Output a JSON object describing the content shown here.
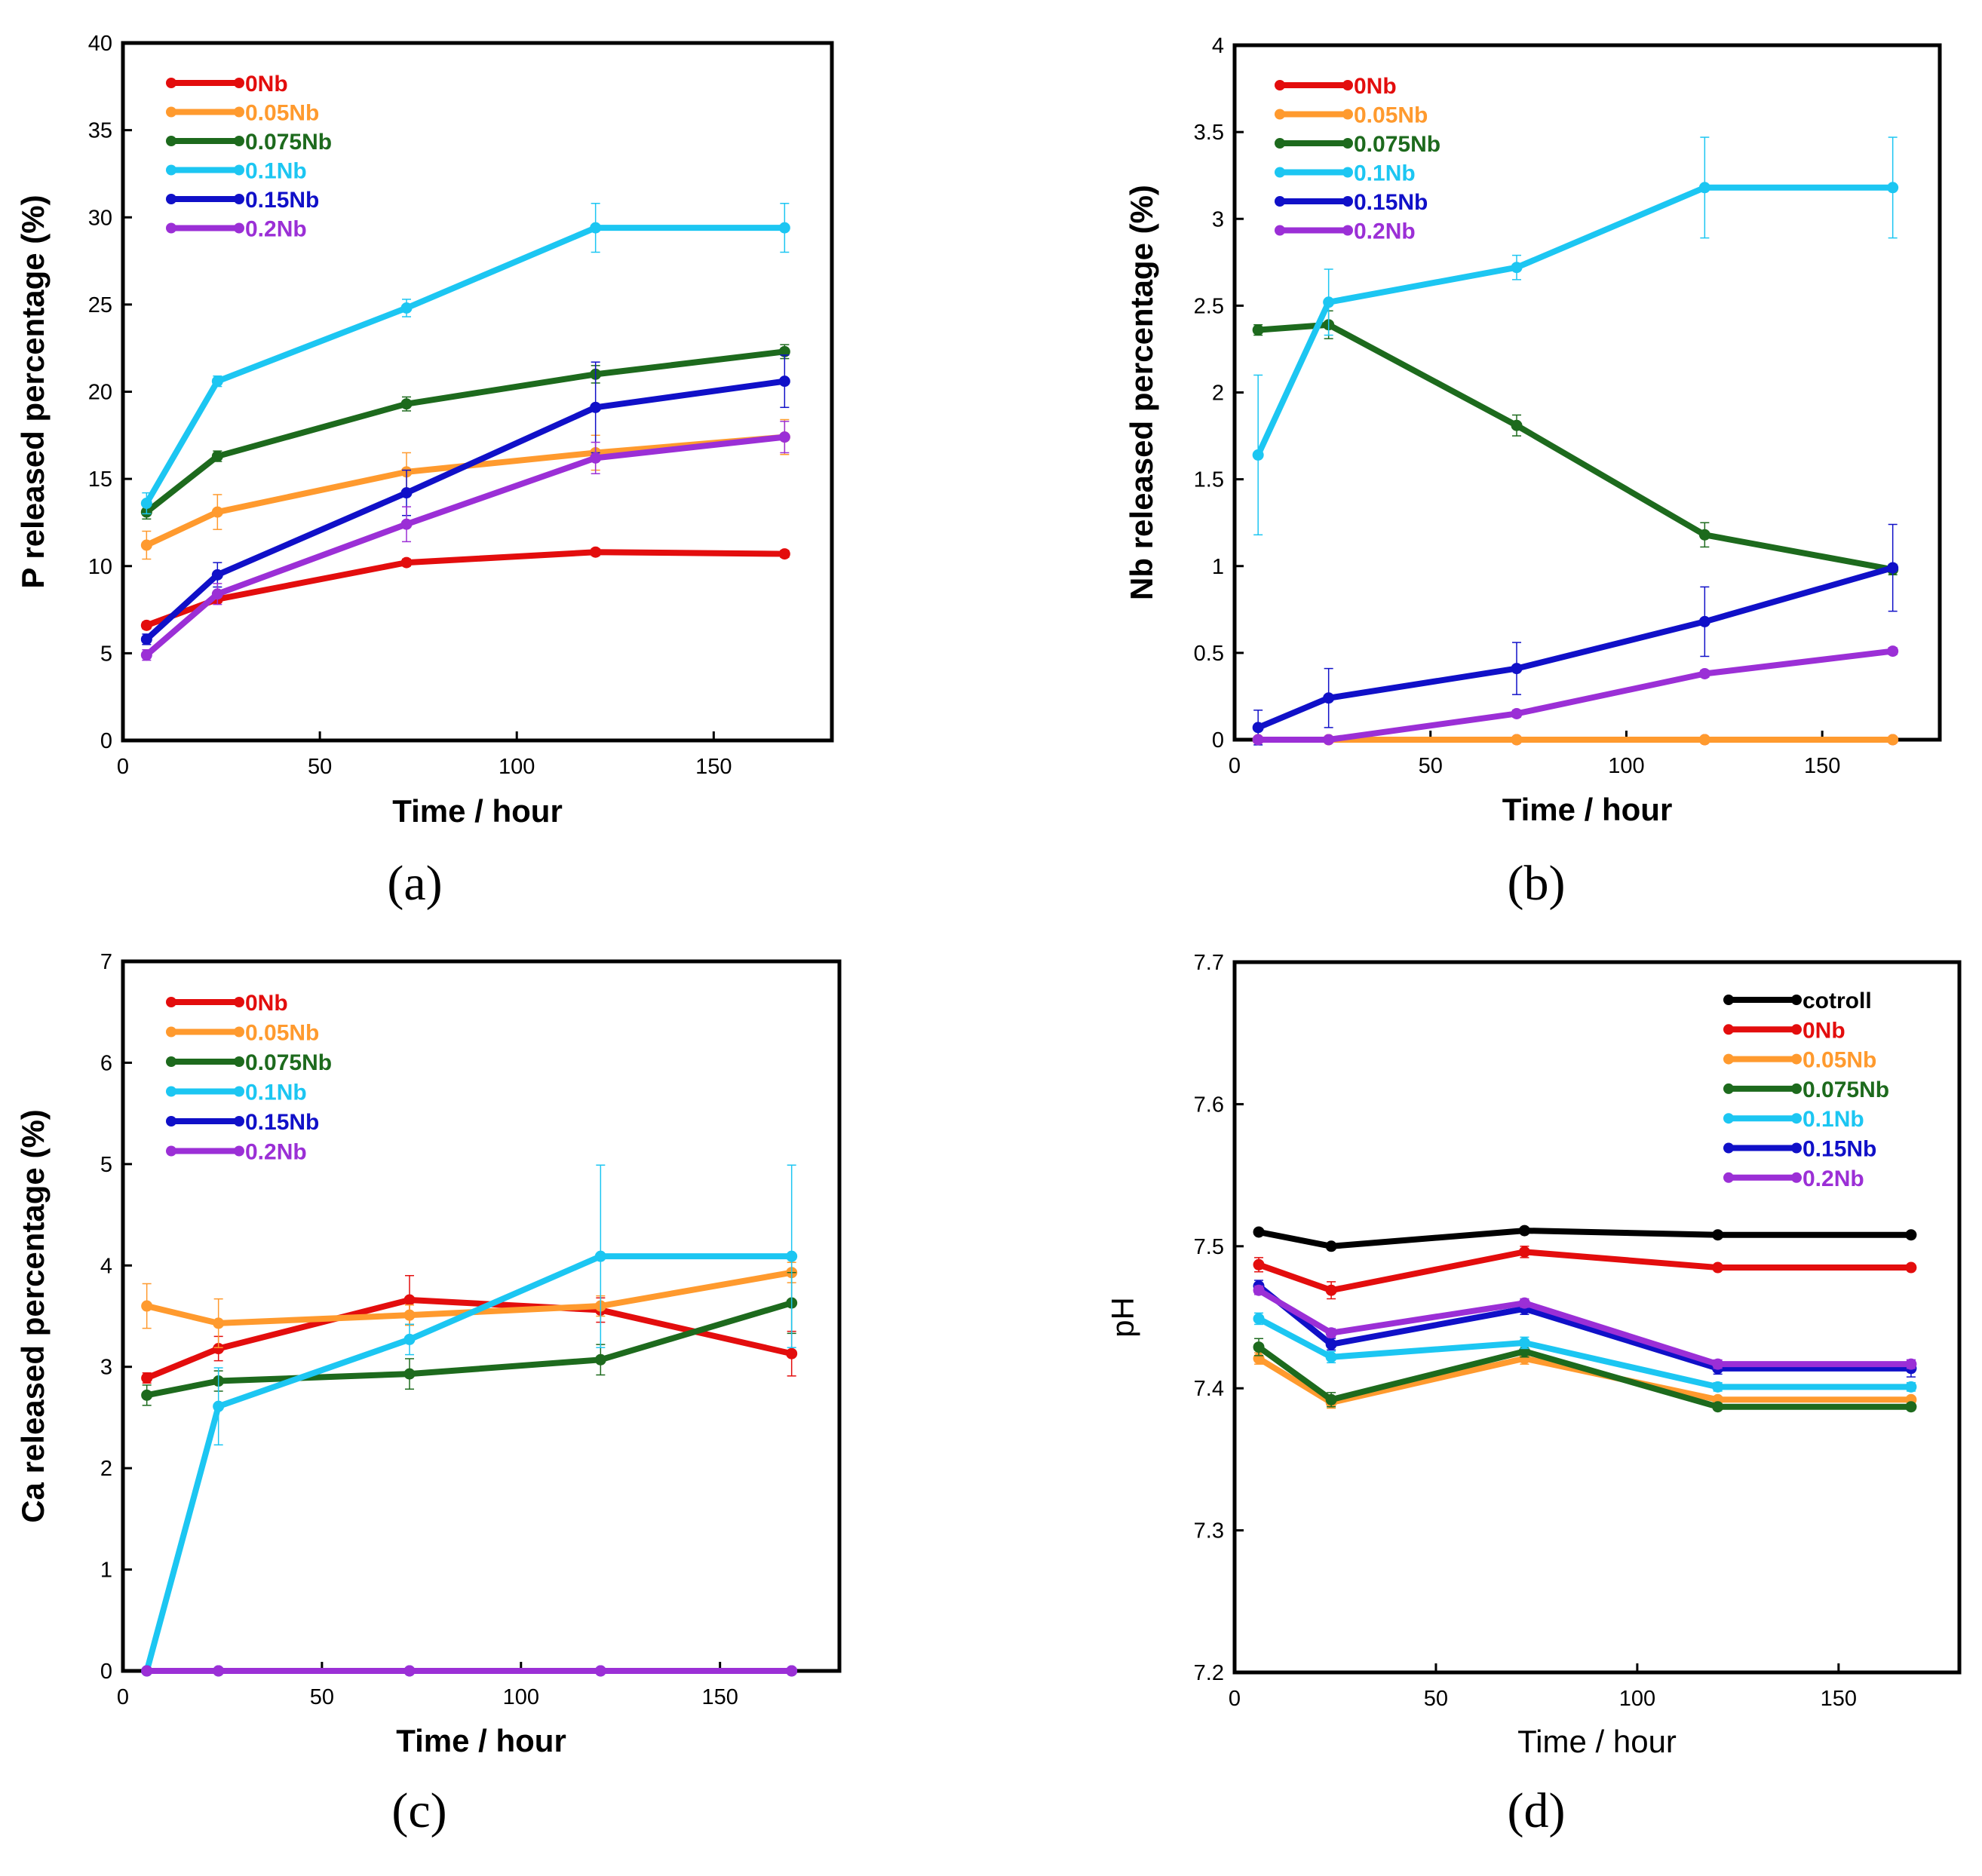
{
  "colors": {
    "cotroll": "#000000",
    "0Nb": "#e30d0d",
    "0.05Nb": "#ff9a2e",
    "0.075Nb": "#1d6a1d",
    "0.1Nb": "#1cc6f2",
    "0.15Nb": "#1010c8",
    "0.2Nb": "#9b2fd6"
  },
  "chart_data": [
    {
      "id": "a",
      "panel_label": "(a)",
      "type": "line",
      "xlabel": "Time / hour",
      "ylabel": "P released percentage (%)",
      "xlim": [
        0,
        180
      ],
      "ylim": [
        0,
        40
      ],
      "xticks": [
        0,
        50,
        100,
        150
      ],
      "yticks": [
        0,
        5,
        10,
        15,
        20,
        25,
        30,
        35,
        40
      ],
      "x": [
        6,
        24,
        72,
        120,
        168
      ],
      "legend_position": "top-left",
      "series": [
        {
          "name": "0Nb",
          "values": [
            6.6,
            8.1,
            10.2,
            10.8,
            10.7
          ],
          "errors": [
            0.2,
            0.2,
            0.2,
            0.2,
            0.2
          ]
        },
        {
          "name": "0.05Nb",
          "values": [
            11.2,
            13.1,
            15.4,
            16.5,
            17.4
          ],
          "errors": [
            0.8,
            1.0,
            1.1,
            1.0,
            1.0
          ]
        },
        {
          "name": "0.075Nb",
          "values": [
            13.1,
            16.3,
            19.3,
            21.0,
            22.3
          ],
          "errors": [
            0.4,
            0.3,
            0.4,
            0.5,
            0.4
          ]
        },
        {
          "name": "0.1Nb",
          "values": [
            13.6,
            20.6,
            24.8,
            29.4,
            29.4
          ],
          "errors": [
            0.6,
            0.3,
            0.5,
            1.4,
            1.4
          ]
        },
        {
          "name": "0.15Nb",
          "values": [
            5.8,
            9.5,
            14.2,
            19.1,
            20.6
          ],
          "errors": [
            0.3,
            0.7,
            1.3,
            2.6,
            1.5
          ]
        },
        {
          "name": "0.2Nb",
          "values": [
            4.9,
            8.4,
            12.4,
            16.2,
            17.4
          ],
          "errors": [
            0.3,
            0.6,
            1.0,
            0.9,
            0.9
          ]
        }
      ]
    },
    {
      "id": "b",
      "panel_label": "(b)",
      "type": "line",
      "xlabel": "Time / hour",
      "ylabel": "Nb released percentage (%)",
      "xlim": [
        0,
        180
      ],
      "ylim": [
        0,
        4
      ],
      "xticks": [
        0,
        50,
        100,
        150
      ],
      "yticks": [
        0,
        0.5,
        1,
        1.5,
        2,
        2.5,
        3,
        3.5,
        4
      ],
      "x": [
        6,
        24,
        72,
        120,
        168
      ],
      "legend_position": "top-left",
      "series": [
        {
          "name": "0Nb",
          "values": [
            0,
            0,
            0,
            0,
            0
          ],
          "errors": [
            0,
            0,
            0,
            0,
            0
          ]
        },
        {
          "name": "0.05Nb",
          "values": [
            0,
            0,
            0,
            0,
            0
          ],
          "errors": [
            0,
            0,
            0,
            0,
            0
          ]
        },
        {
          "name": "0.075Nb",
          "values": [
            2.36,
            2.39,
            1.81,
            1.18,
            0.98
          ],
          "errors": [
            0.03,
            0.08,
            0.06,
            0.07,
            0.03
          ]
        },
        {
          "name": "0.1Nb",
          "values": [
            1.64,
            2.52,
            2.72,
            3.18,
            3.18
          ],
          "errors": [
            0.46,
            0.19,
            0.07,
            0.29,
            0.29
          ]
        },
        {
          "name": "0.15Nb",
          "values": [
            0.07,
            0.24,
            0.41,
            0.68,
            0.99
          ],
          "errors": [
            0.1,
            0.17,
            0.15,
            0.2,
            0.25
          ]
        },
        {
          "name": "0.2Nb",
          "values": [
            0,
            0,
            0.15,
            0.38,
            0.51
          ],
          "errors": [
            0,
            0,
            0.02,
            0.02,
            0.02
          ]
        }
      ]
    },
    {
      "id": "c",
      "panel_label": "(c)",
      "type": "line",
      "xlabel": "Time / hour",
      "ylabel": "Ca released percentage (%)",
      "xlim": [
        0,
        180
      ],
      "ylim": [
        0,
        7
      ],
      "xticks": [
        0,
        50,
        100,
        150
      ],
      "yticks": [
        0,
        1,
        2,
        3,
        4,
        5,
        6,
        7
      ],
      "x": [
        6,
        24,
        72,
        120,
        168
      ],
      "legend_position": "top-left",
      "series": [
        {
          "name": "0Nb",
          "values": [
            2.89,
            3.18,
            3.66,
            3.56,
            3.13
          ],
          "errors": [
            0.05,
            0.12,
            0.24,
            0.12,
            0.22
          ]
        },
        {
          "name": "0.05Nb",
          "values": [
            3.6,
            3.43,
            3.51,
            3.6,
            3.93
          ],
          "errors": [
            0.22,
            0.24,
            0.1,
            0.1,
            0.1
          ]
        },
        {
          "name": "0.075Nb",
          "values": [
            2.72,
            2.86,
            2.93,
            3.07,
            3.63
          ],
          "errors": [
            0.1,
            0.1,
            0.15,
            0.15,
            0.3
          ]
        },
        {
          "name": "0.1Nb",
          "values": [
            0,
            2.61,
            3.27,
            4.09,
            4.09
          ],
          "errors": [
            0,
            0.38,
            0.15,
            0.9,
            0.9
          ]
        },
        {
          "name": "0.15Nb",
          "values": [
            0,
            0,
            0,
            0,
            0
          ],
          "errors": [
            0,
            0,
            0,
            0,
            0
          ]
        },
        {
          "name": "0.2Nb",
          "values": [
            0,
            0,
            0,
            0,
            0
          ],
          "errors": [
            0,
            0,
            0,
            0,
            0
          ]
        }
      ]
    },
    {
      "id": "d",
      "panel_label": "(d)",
      "type": "line",
      "xlabel": "Time / hour",
      "ylabel": "pH",
      "xlim": [
        0,
        180
      ],
      "ylim": [
        7.2,
        7.7
      ],
      "xticks": [
        0,
        50,
        100,
        150
      ],
      "yticks": [
        7.2,
        7.3,
        7.4,
        7.5,
        7.6,
        7.7
      ],
      "x": [
        6,
        24,
        72,
        120,
        168
      ],
      "legend_position": "top-right",
      "series": [
        {
          "name": "cotroll",
          "values": [
            7.51,
            7.5,
            7.511,
            7.508,
            7.508
          ],
          "errors": [
            0.002,
            0.002,
            0.002,
            0.002,
            0.002
          ]
        },
        {
          "name": "0Nb",
          "values": [
            7.487,
            7.469,
            7.496,
            7.485,
            7.485
          ],
          "errors": [
            0.005,
            0.006,
            0.004,
            0.002,
            0.002
          ]
        },
        {
          "name": "0.05Nb",
          "values": [
            7.421,
            7.39,
            7.421,
            7.392,
            7.392
          ],
          "errors": [
            0.004,
            0.004,
            0.004,
            0.002,
            0.002
          ]
        },
        {
          "name": "0.075Nb",
          "values": [
            7.429,
            7.392,
            7.426,
            7.387,
            7.387
          ],
          "errors": [
            0.006,
            0.005,
            0.004,
            0.002,
            0.002
          ]
        },
        {
          "name": "0.1Nb",
          "values": [
            7.449,
            7.422,
            7.432,
            7.401,
            7.401
          ],
          "errors": [
            0.004,
            0.004,
            0.004,
            0.003,
            0.003
          ]
        },
        {
          "name": "0.15Nb",
          "values": [
            7.472,
            7.431,
            7.456,
            7.414,
            7.414
          ],
          "errors": [
            0.004,
            0.004,
            0.004,
            0.004,
            0.006
          ]
        },
        {
          "name": "0.2Nb",
          "values": [
            7.469,
            7.439,
            7.46,
            7.417,
            7.417
          ],
          "errors": [
            0.003,
            0.003,
            0.003,
            0.003,
            0.003
          ]
        }
      ]
    }
  ]
}
